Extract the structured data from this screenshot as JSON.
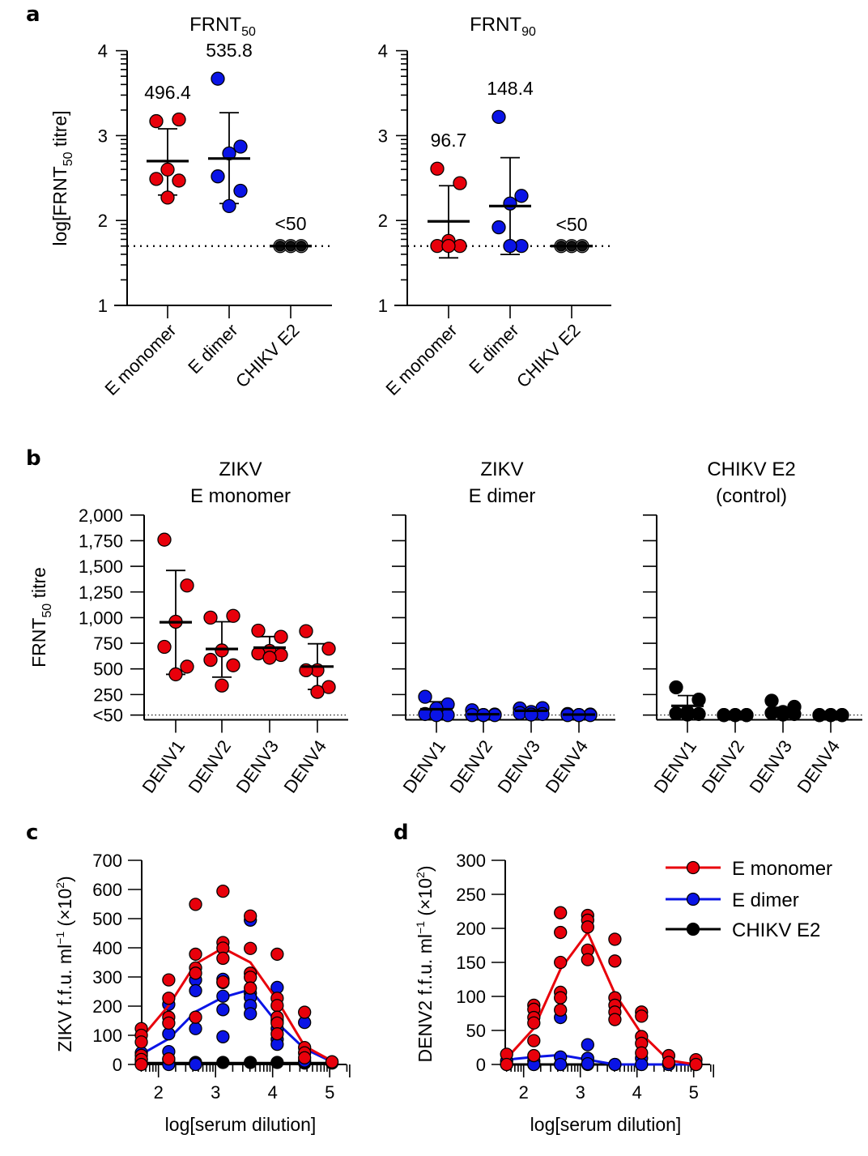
{
  "panel_labels": {
    "a": "a",
    "b": "b",
    "c": "c",
    "d": "d"
  },
  "colors": {
    "e_monomer": "#e8000b",
    "e_dimer": "#0a14e6",
    "chikv_e2": "#000000",
    "chikv_grey": "#555555"
  },
  "chart_data": [
    {
      "id": "a-frnt50",
      "panel": "a",
      "type": "scatter",
      "title": "FRNT",
      "title_sub": "50",
      "ylabel": "log[FRNT",
      "ylabel_sub": "50",
      "ylabel_tail": " titre]",
      "yscale": "log-display",
      "ylim": [
        1,
        4
      ],
      "yticks": [
        1,
        2,
        3,
        4
      ],
      "ytick_labels": [
        "1",
        "2",
        "3",
        "4"
      ],
      "limit_of_detection": 1.699,
      "categories": [
        "E monomer",
        "E dimer",
        "CHIKV E2"
      ],
      "series": [
        {
          "name": "E monomer",
          "color_key": "e_monomer",
          "values": [
            3.17,
            3.19,
            2.6,
            2.49,
            2.47,
            2.27
          ],
          "mean": 2.7,
          "err": [
            2.3,
            3.08
          ],
          "annotation": "496.4"
        },
        {
          "name": "E dimer",
          "color_key": "e_dimer",
          "values": [
            3.67,
            2.87,
            2.79,
            2.52,
            2.35,
            2.17
          ],
          "mean": 2.73,
          "err": [
            2.2,
            3.27
          ],
          "annotation": "535.8"
        },
        {
          "name": "CHIKV E2",
          "color_key": "chikv_grey",
          "values": [
            1.699,
            1.699,
            1.699
          ],
          "mean": 1.699,
          "err": null,
          "annotation": "<50"
        }
      ]
    },
    {
      "id": "a-frnt90",
      "panel": "a",
      "type": "scatter",
      "title": "FRNT",
      "title_sub": "90",
      "yscale": "log-display",
      "ylim": [
        1,
        4
      ],
      "yticks": [
        1,
        2,
        3,
        4
      ],
      "ytick_labels": [
        "1",
        "2",
        "3",
        "4"
      ],
      "limit_of_detection": 1.699,
      "categories": [
        "E monomer",
        "E dimer",
        "CHIKV E2"
      ],
      "series": [
        {
          "name": "E monomer",
          "color_key": "e_monomer",
          "values": [
            2.61,
            2.44,
            1.76,
            1.7,
            1.7,
            1.7
          ],
          "mean": 1.99,
          "err": [
            1.56,
            2.41
          ],
          "annotation": "96.7"
        },
        {
          "name": "E dimer",
          "color_key": "e_dimer",
          "values": [
            3.22,
            2.29,
            2.2,
            1.92,
            1.7,
            1.7
          ],
          "mean": 2.17,
          "err": [
            1.6,
            2.74
          ],
          "annotation": "148.4"
        },
        {
          "name": "CHIKV E2",
          "color_key": "chikv_grey",
          "values": [
            1.699,
            1.699,
            1.699
          ],
          "mean": 1.699,
          "err": null,
          "annotation": "<50"
        }
      ]
    },
    {
      "id": "b-monomer",
      "panel": "b",
      "type": "scatter",
      "title_line1": "ZIKV",
      "title_line2": "E monomer",
      "ylabel": "FRNT",
      "ylabel_sub": "50",
      "ylabel_tail": " titre",
      "ylim": [
        50,
        2000
      ],
      "yticks": [
        50,
        250,
        500,
        750,
        1000,
        1250,
        1500,
        1750,
        2000
      ],
      "ytick_labels": [
        "<50",
        "250",
        "500",
        "750",
        "1,000",
        "1,250",
        "1,500",
        "1,750",
        "2,000"
      ],
      "limit_of_detection": 50,
      "color_key": "e_monomer",
      "categories": [
        "DENV1",
        "DENV2",
        "DENV3",
        "DENV4"
      ],
      "groups": [
        {
          "values": [
            1760,
            1313,
            960,
            715,
            522,
            447
          ],
          "mean": 955,
          "err": [
            447,
            1460
          ]
        },
        {
          "values": [
            1000,
            1017,
            680,
            588,
            535,
            338
          ],
          "mean": 694,
          "err": [
            420,
            960
          ]
        },
        {
          "values": [
            873,
            813,
            675,
            651,
            636,
            609
          ],
          "mean": 707,
          "err": [
            630,
            815
          ]
        },
        {
          "values": [
            868,
            697,
            487,
            487,
            323,
            276
          ],
          "mean": 523,
          "err": [
            300,
            745
          ]
        }
      ]
    },
    {
      "id": "b-dimer",
      "panel": "b",
      "type": "scatter",
      "title_line1": "ZIKV",
      "title_line2": "E dimer",
      "ylim": [
        50,
        2000
      ],
      "yticks": [
        50,
        250,
        500,
        750,
        1000,
        1250,
        1500,
        1750,
        2000
      ],
      "limit_of_detection": 50,
      "color_key": "e_dimer",
      "categories": [
        "DENV1",
        "DENV2",
        "DENV3",
        "DENV4"
      ],
      "groups": [
        {
          "values": [
            228,
            154,
            115,
            60,
            50,
            50
          ],
          "mean": 107,
          "err": [
            50,
            180
          ]
        },
        {
          "values": [
            97,
            55,
            50,
            50,
            50,
            50
          ],
          "mean": 58,
          "err": [
            50,
            70
          ]
        },
        {
          "values": [
            115,
            118,
            80,
            70,
            60,
            55
          ],
          "mean": 92,
          "err": [
            60,
            110
          ]
        },
        {
          "values": [
            60,
            55,
            50,
            50,
            50,
            50
          ],
          "mean": 55,
          "err": [
            50,
            60
          ]
        }
      ]
    },
    {
      "id": "b-chikv",
      "panel": "b",
      "type": "scatter",
      "title_line1": "CHIKV E2",
      "title_line2": "(control)",
      "ylim": [
        50,
        2000
      ],
      "yticks": [
        50,
        250,
        500,
        750,
        1000,
        1250,
        1500,
        1750,
        2000
      ],
      "limit_of_detection": 50,
      "color_key": "chikv_e2",
      "categories": [
        "DENV1",
        "DENV2",
        "DENV3",
        "DENV4"
      ],
      "groups": [
        {
          "values": [
            320,
            200,
            80,
            65,
            60,
            55
          ],
          "mean": 140,
          "err": [
            50,
            240
          ]
        },
        {
          "values": [
            50,
            50,
            50,
            50,
            50,
            50
          ],
          "mean": 50,
          "err": null
        },
        {
          "values": [
            190,
            130,
            80,
            70,
            60,
            55
          ],
          "mean": 110,
          "err": [
            70,
            125
          ]
        },
        {
          "values": [
            50,
            50,
            50,
            50,
            50,
            50
          ],
          "mean": 50,
          "err": null
        }
      ]
    },
    {
      "id": "c",
      "panel": "c",
      "type": "line",
      "xlabel": "log[serum dilution]",
      "ylabel": "ZIKV f.f.u. ml",
      "ylabel_sup": "−1",
      "ylabel_tail": " (×10",
      "ylabel_tail_sup": "2",
      "ylabel_end": ")",
      "xlim": [
        1.7,
        5.3
      ],
      "ylim": [
        0,
        700
      ],
      "xticks": [
        2,
        3,
        4,
        5
      ],
      "yticks": [
        0,
        100,
        200,
        300,
        400,
        500,
        600,
        700
      ],
      "x": [
        1.7,
        2.18,
        2.65,
        3.13,
        3.61,
        4.08,
        4.56,
        5.04
      ],
      "series": [
        {
          "name": "E monomer",
          "color_key": "e_monomer",
          "line": [
            91,
            202,
            345,
            399,
            350,
            220,
            63,
            12
          ],
          "points": [
            [
              123,
              100,
              77,
              31,
              17,
              0
            ],
            [
              290,
              227,
              162,
              142,
              19
            ],
            [
              549,
              378,
              331,
              313,
              162
            ],
            [
              594,
              418,
              399,
              364,
              283
            ],
            [
              509,
              398,
              313,
              299,
              262
            ],
            [
              378,
              227,
              202,
              162,
              142,
              105
            ],
            [
              179,
              58,
              40,
              23
            ],
            [
              9
            ]
          ]
        },
        {
          "name": "E dimer",
          "color_key": "e_dimer",
          "line": [
            35,
            88,
            181,
            230,
            257,
            142,
            54,
            9
          ],
          "points": [
            [
              40,
              17,
              3
            ],
            [
              206,
              105,
              44,
              17,
              0
            ],
            [
              290,
              253,
              123,
              0
            ],
            [
              292,
              281,
              234,
              188,
              95
            ],
            [
              495,
              244,
              230,
              202,
              174
            ],
            [
              264,
              151,
              123,
              86,
              69
            ],
            [
              144,
              12
            ],
            [
              9
            ]
          ]
        },
        {
          "name": "CHIKV E2",
          "color_key": "chikv_e2",
          "line": [
            5,
            5,
            5,
            5,
            5,
            5,
            5,
            5
          ],
          "points": [
            [
              5
            ],
            [
              5
            ],
            [
              7
            ],
            [
              7
            ],
            [
              7
            ],
            [
              7
            ],
            [
              5
            ],
            [
              5
            ]
          ]
        }
      ]
    },
    {
      "id": "d",
      "panel": "d",
      "type": "line",
      "xlabel": "log[serum dilution]",
      "ylabel": "DENV2 f.f.u. ml",
      "ylabel_sup": "−1",
      "ylabel_tail": " (×10",
      "ylabel_tail_sup": "2",
      "ylabel_end": ")",
      "xlim": [
        1.7,
        5.3
      ],
      "ylim": [
        0,
        300
      ],
      "xticks": [
        2,
        3,
        4,
        5
      ],
      "yticks": [
        0,
        50,
        100,
        150,
        200,
        250,
        300
      ],
      "x": [
        1.7,
        2.18,
        2.65,
        3.13,
        3.61,
        4.08,
        4.56,
        5.04
      ],
      "legend": {
        "position": "top-right",
        "entries": [
          "E monomer",
          "E dimer",
          "CHIKV E2"
        ]
      },
      "series": [
        {
          "name": "E monomer",
          "color_key": "e_monomer",
          "line": [
            9,
            53,
            140,
            194,
            104,
            45,
            6,
            0
          ],
          "points": [
            [
              15,
              0
            ],
            [
              87,
              81,
              69,
              61,
              35,
              13
            ],
            [
              223,
              194,
              150,
              106,
              98,
              80
            ],
            [
              219,
              212,
              202,
              168,
              154
            ],
            [
              184,
              152,
              98,
              87,
              77,
              66
            ],
            [
              77,
              71,
              41,
              31,
              17
            ],
            [
              13,
              3
            ],
            [
              7,
              0
            ]
          ]
        },
        {
          "name": "E dimer",
          "color_key": "e_dimer",
          "line": [
            7,
            11,
            14,
            7,
            0,
            0,
            0,
            0
          ],
          "points": [
            [
              5
            ],
            [
              5,
              0
            ],
            [
              69,
              11,
              0
            ],
            [
              29,
              9,
              1
            ],
            [
              0
            ],
            [
              9,
              0
            ],
            [
              0
            ],
            [
              0
            ]
          ]
        },
        {
          "name": "CHIKV E2",
          "color_key": "chikv_e2",
          "line": [
            0,
            0,
            0,
            0,
            0,
            0,
            0,
            0
          ],
          "points": [
            [
              0
            ],
            [
              0
            ],
            [
              0
            ],
            [
              0
            ],
            [
              0
            ],
            [
              0
            ],
            [
              0
            ],
            [
              0
            ]
          ]
        }
      ]
    }
  ]
}
